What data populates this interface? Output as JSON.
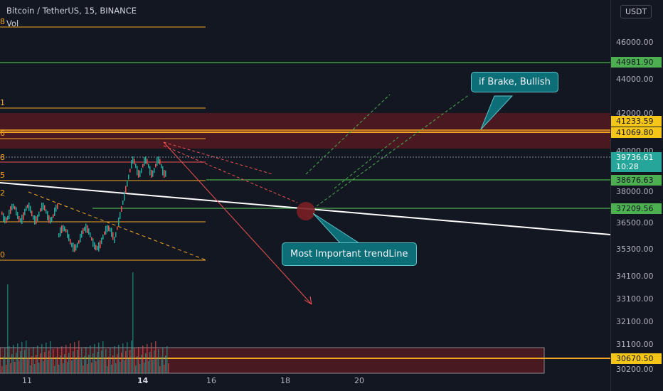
{
  "header": {
    "symbol_line": "Bitcoin / TetherUS, 15, BINANCE",
    "volume_label": "Vol",
    "currency": "USDT"
  },
  "price_axis": {
    "ticks": [
      "46000.00",
      "44000.00",
      "42000.00",
      "40000.00",
      "38000.00",
      "36500.00",
      "35300.00",
      "34100.00",
      "33100.00",
      "32100.00",
      "31100.00",
      "30200.00"
    ]
  },
  "time_axis": {
    "ticks": [
      "11",
      "14",
      "16",
      "18",
      "20"
    ]
  },
  "price_tags": {
    "green_top": "44981.90",
    "yellow_top": "41233.59",
    "yellow_second": "41069.80",
    "current_price": "39736.61",
    "current_countdown": "10:28",
    "green_mid": "38676.63",
    "green_low": "37209.56",
    "yellow_bottom": "30670.50"
  },
  "fib_left_labels": [
    "8",
    "1",
    "6",
    "8",
    "5",
    "2",
    "0"
  ],
  "annotations": {
    "bullish_note": "if Brake, Bullish",
    "trendline_note": "Most Important trendLine"
  },
  "colors": {
    "background": "#131722",
    "up": "#26a69a",
    "down": "#ef5350",
    "fib": "#f5a623",
    "green_line": "#4caf50",
    "zone": "#5c1a22",
    "trendline": "#ffffff",
    "callout": "#0c6e77"
  }
}
